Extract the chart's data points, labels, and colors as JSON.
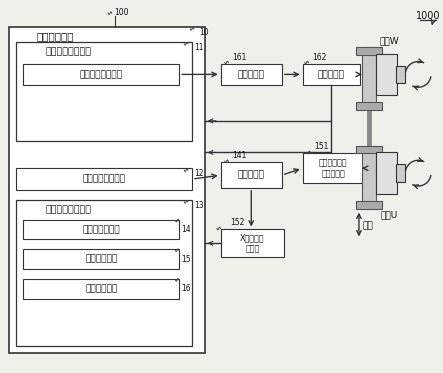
{
  "bg_color": "#f0f0eb",
  "box_color": "#ffffff",
  "box_edge": "#333333",
  "arrow_color": "#333333",
  "text_color": "#111111",
  "title": "1000",
  "label_100": "100",
  "label_10": "10",
  "label_11": "11",
  "label_12": "12",
  "label_13": "13",
  "label_14": "14",
  "label_15": "15",
  "label_16": "16",
  "label_141": "141",
  "label_151": "151",
  "label_152": "152",
  "label_161": "161",
  "label_162": "162",
  "outer_box_label": "数值控制装置",
  "inner_box1_label": "多边形加工控制部",
  "box_A_label": "工件轴指令生成部",
  "box_B_label": "工具轴指令生成部",
  "inner_box2_label": "移动轴指令生成部",
  "box_C_label": "位置偏移取得部",
  "box_D_label": "调整量生成部",
  "box_E_label": "调整量指令部",
  "box_161_label": "主轴放大器",
  "box_162_label": "主轴电动机",
  "box_141_label": "伺服放大器",
  "box_151_label": "工具轴旋转用\n伺服电动机",
  "box_152_label": "X轴用伺服\n电动机",
  "label_workpiece": "工件W",
  "label_tool": "工具U",
  "label_vibration": "振动"
}
